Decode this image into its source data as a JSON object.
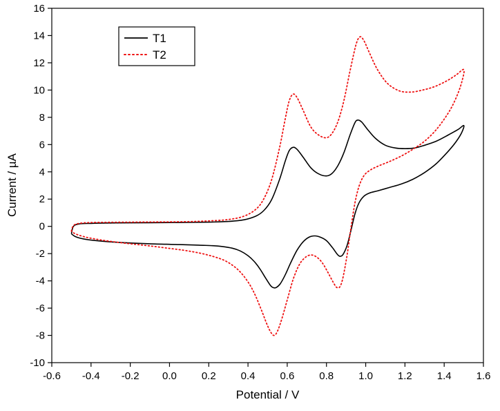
{
  "chart_data": {
    "type": "line",
    "subtype": "cyclic-voltammogram",
    "title": "",
    "xlabel": "Potential / V",
    "ylabel": "Current / µA",
    "xlim": [
      -0.6,
      1.6
    ],
    "ylim": [
      -10,
      16
    ],
    "grid": false,
    "xticks": [
      -0.6,
      -0.4,
      -0.2,
      0.0,
      0.2,
      0.4,
      0.6,
      0.8,
      1.0,
      1.2,
      1.4,
      1.6
    ],
    "xtick_labels": [
      "-0.6",
      "-0.4",
      "-0.2",
      "0.0",
      "0.2",
      "0.4",
      "0.6",
      "0.8",
      "1.0",
      "1.2",
      "1.4",
      "1.6"
    ],
    "yticks": [
      -10,
      -8,
      -6,
      -4,
      -2,
      0,
      2,
      4,
      6,
      8,
      10,
      12,
      14,
      16
    ],
    "ytick_labels": [
      "-10",
      "-8",
      "-6",
      "-4",
      "-2",
      "0",
      "2",
      "4",
      "6",
      "8",
      "10",
      "12",
      "14",
      "16"
    ],
    "legend": {
      "position": "top-left",
      "entries": [
        {
          "label": "T1",
          "color": "#000000",
          "line_style": "solid"
        },
        {
          "label": "T2",
          "color": "#ee1111",
          "line_style": "dotted"
        }
      ]
    },
    "series": [
      {
        "name": "T1",
        "color": "#000000",
        "line_style": "solid",
        "points": [
          [
            -0.5,
            -0.55
          ],
          [
            -0.49,
            0.0
          ],
          [
            -0.46,
            0.18
          ],
          [
            -0.4,
            0.22
          ],
          [
            -0.3,
            0.25
          ],
          [
            -0.2,
            0.26
          ],
          [
            -0.1,
            0.27
          ],
          [
            0.0,
            0.28
          ],
          [
            0.1,
            0.29
          ],
          [
            0.2,
            0.31
          ],
          [
            0.3,
            0.36
          ],
          [
            0.38,
            0.48
          ],
          [
            0.44,
            0.75
          ],
          [
            0.48,
            1.15
          ],
          [
            0.52,
            1.95
          ],
          [
            0.56,
            3.4
          ],
          [
            0.59,
            4.8
          ],
          [
            0.61,
            5.55
          ],
          [
            0.63,
            5.8
          ],
          [
            0.65,
            5.65
          ],
          [
            0.68,
            5.1
          ],
          [
            0.72,
            4.3
          ],
          [
            0.76,
            3.85
          ],
          [
            0.8,
            3.7
          ],
          [
            0.83,
            3.9
          ],
          [
            0.86,
            4.5
          ],
          [
            0.89,
            5.45
          ],
          [
            0.92,
            6.7
          ],
          [
            0.945,
            7.6
          ],
          [
            0.96,
            7.8
          ],
          [
            0.98,
            7.65
          ],
          [
            1.01,
            7.1
          ],
          [
            1.05,
            6.45
          ],
          [
            1.1,
            5.95
          ],
          [
            1.15,
            5.75
          ],
          [
            1.2,
            5.7
          ],
          [
            1.25,
            5.75
          ],
          [
            1.3,
            5.95
          ],
          [
            1.36,
            6.25
          ],
          [
            1.42,
            6.7
          ],
          [
            1.47,
            7.1
          ],
          [
            1.5,
            7.4
          ],
          [
            1.49,
            6.9
          ],
          [
            1.46,
            6.2
          ],
          [
            1.42,
            5.5
          ],
          [
            1.36,
            4.6
          ],
          [
            1.3,
            3.95
          ],
          [
            1.24,
            3.45
          ],
          [
            1.18,
            3.1
          ],
          [
            1.12,
            2.85
          ],
          [
            1.06,
            2.6
          ],
          [
            1.02,
            2.45
          ],
          [
            0.99,
            2.2
          ],
          [
            0.965,
            1.7
          ],
          [
            0.945,
            0.9
          ],
          [
            0.925,
            -0.3
          ],
          [
            0.905,
            -1.4
          ],
          [
            0.885,
            -2.05
          ],
          [
            0.87,
            -2.2
          ],
          [
            0.855,
            -2.05
          ],
          [
            0.83,
            -1.55
          ],
          [
            0.8,
            -1.05
          ],
          [
            0.77,
            -0.8
          ],
          [
            0.74,
            -0.7
          ],
          [
            0.71,
            -0.8
          ],
          [
            0.68,
            -1.15
          ],
          [
            0.65,
            -1.75
          ],
          [
            0.62,
            -2.6
          ],
          [
            0.59,
            -3.55
          ],
          [
            0.565,
            -4.2
          ],
          [
            0.545,
            -4.48
          ],
          [
            0.53,
            -4.5
          ],
          [
            0.515,
            -4.35
          ],
          [
            0.49,
            -3.8
          ],
          [
            0.46,
            -3.1
          ],
          [
            0.43,
            -2.55
          ],
          [
            0.4,
            -2.15
          ],
          [
            0.36,
            -1.8
          ],
          [
            0.32,
            -1.6
          ],
          [
            0.27,
            -1.48
          ],
          [
            0.22,
            -1.42
          ],
          [
            0.15,
            -1.38
          ],
          [
            0.08,
            -1.35
          ],
          [
            0.0,
            -1.32
          ],
          [
            -0.1,
            -1.28
          ],
          [
            -0.2,
            -1.22
          ],
          [
            -0.3,
            -1.14
          ],
          [
            -0.38,
            -1.04
          ],
          [
            -0.44,
            -0.92
          ],
          [
            -0.48,
            -0.75
          ],
          [
            -0.5,
            -0.55
          ]
        ]
      },
      {
        "name": "T2",
        "color": "#ee1111",
        "line_style": "dotted",
        "points": [
          [
            -0.5,
            -0.35
          ],
          [
            -0.49,
            0.05
          ],
          [
            -0.46,
            0.22
          ],
          [
            -0.4,
            0.28
          ],
          [
            -0.3,
            0.3
          ],
          [
            -0.2,
            0.31
          ],
          [
            -0.1,
            0.32
          ],
          [
            0.0,
            0.33
          ],
          [
            0.1,
            0.35
          ],
          [
            0.2,
            0.4
          ],
          [
            0.3,
            0.5
          ],
          [
            0.38,
            0.75
          ],
          [
            0.44,
            1.25
          ],
          [
            0.48,
            2.0
          ],
          [
            0.52,
            3.4
          ],
          [
            0.56,
            5.7
          ],
          [
            0.59,
            7.9
          ],
          [
            0.61,
            9.2
          ],
          [
            0.63,
            9.7
          ],
          [
            0.65,
            9.45
          ],
          [
            0.68,
            8.55
          ],
          [
            0.72,
            7.3
          ],
          [
            0.76,
            6.7
          ],
          [
            0.8,
            6.5
          ],
          [
            0.83,
            6.85
          ],
          [
            0.86,
            7.75
          ],
          [
            0.89,
            9.3
          ],
          [
            0.92,
            11.4
          ],
          [
            0.95,
            13.3
          ],
          [
            0.97,
            13.9
          ],
          [
            0.99,
            13.65
          ],
          [
            1.02,
            12.7
          ],
          [
            1.06,
            11.5
          ],
          [
            1.11,
            10.5
          ],
          [
            1.17,
            9.95
          ],
          [
            1.23,
            9.85
          ],
          [
            1.29,
            10.0
          ],
          [
            1.35,
            10.25
          ],
          [
            1.41,
            10.65
          ],
          [
            1.46,
            11.1
          ],
          [
            1.5,
            11.5
          ],
          [
            1.49,
            10.6
          ],
          [
            1.46,
            9.4
          ],
          [
            1.42,
            8.3
          ],
          [
            1.36,
            7.1
          ],
          [
            1.3,
            6.25
          ],
          [
            1.24,
            5.65
          ],
          [
            1.18,
            5.15
          ],
          [
            1.12,
            4.75
          ],
          [
            1.06,
            4.4
          ],
          [
            1.02,
            4.1
          ],
          [
            0.99,
            3.7
          ],
          [
            0.965,
            2.9
          ],
          [
            0.945,
            1.7
          ],
          [
            0.925,
            -0.1
          ],
          [
            0.905,
            -2.1
          ],
          [
            0.885,
            -3.7
          ],
          [
            0.87,
            -4.4
          ],
          [
            0.855,
            -4.5
          ],
          [
            0.84,
            -4.25
          ],
          [
            0.81,
            -3.45
          ],
          [
            0.78,
            -2.7
          ],
          [
            0.75,
            -2.25
          ],
          [
            0.72,
            -2.1
          ],
          [
            0.69,
            -2.3
          ],
          [
            0.66,
            -2.85
          ],
          [
            0.63,
            -3.9
          ],
          [
            0.6,
            -5.4
          ],
          [
            0.57,
            -6.9
          ],
          [
            0.55,
            -7.7
          ],
          [
            0.535,
            -8.0
          ],
          [
            0.52,
            -7.85
          ],
          [
            0.5,
            -7.3
          ],
          [
            0.47,
            -6.2
          ],
          [
            0.44,
            -5.15
          ],
          [
            0.41,
            -4.3
          ],
          [
            0.37,
            -3.5
          ],
          [
            0.33,
            -2.95
          ],
          [
            0.28,
            -2.5
          ],
          [
            0.22,
            -2.2
          ],
          [
            0.15,
            -1.95
          ],
          [
            0.07,
            -1.75
          ],
          [
            -0.02,
            -1.58
          ],
          [
            -0.11,
            -1.42
          ],
          [
            -0.2,
            -1.28
          ],
          [
            -0.29,
            -1.12
          ],
          [
            -0.37,
            -0.95
          ],
          [
            -0.43,
            -0.78
          ],
          [
            -0.48,
            -0.55
          ],
          [
            -0.5,
            -0.35
          ]
        ]
      }
    ]
  }
}
